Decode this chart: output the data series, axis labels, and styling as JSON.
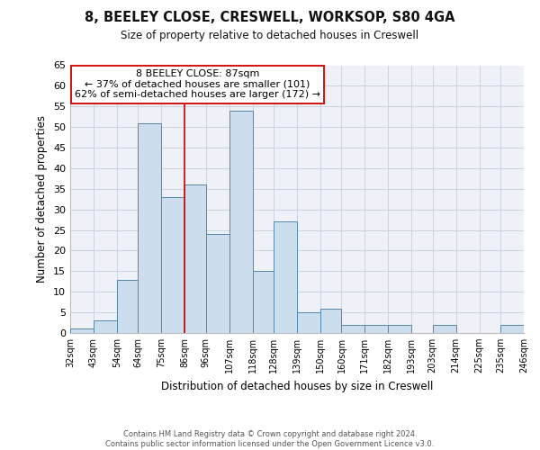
{
  "title": "8, BEELEY CLOSE, CRESWELL, WORKSOP, S80 4GA",
  "subtitle": "Size of property relative to detached houses in Creswell",
  "xlabel": "Distribution of detached houses by size in Creswell",
  "ylabel": "Number of detached properties",
  "footer_line1": "Contains HM Land Registry data © Crown copyright and database right 2024.",
  "footer_line2": "Contains public sector information licensed under the Open Government Licence v3.0.",
  "annotation_line1": "8 BEELEY CLOSE: 87sqm",
  "annotation_line2": "← 37% of detached houses are smaller (101)",
  "annotation_line3": "62% of semi-detached houses are larger (172) →",
  "bar_edges": [
    32,
    43,
    54,
    64,
    75,
    86,
    96,
    107,
    118,
    128,
    139,
    150,
    160,
    171,
    182,
    193,
    203,
    214,
    225,
    235,
    246
  ],
  "bar_heights": [
    1,
    3,
    13,
    51,
    33,
    36,
    24,
    54,
    15,
    27,
    5,
    6,
    2,
    2,
    2,
    0,
    2,
    0,
    0,
    2
  ],
  "bar_color": "#ccdded",
  "bar_edge_color": "#5588aa",
  "reference_line_x": 86,
  "reference_line_color": "#cc0000",
  "ylim": [
    0,
    65
  ],
  "yticks": [
    0,
    5,
    10,
    15,
    20,
    25,
    30,
    35,
    40,
    45,
    50,
    55,
    60,
    65
  ],
  "bg_color": "#ffffff",
  "plot_bg_color": "#eef2f8",
  "grid_color": "#c8d4e0"
}
